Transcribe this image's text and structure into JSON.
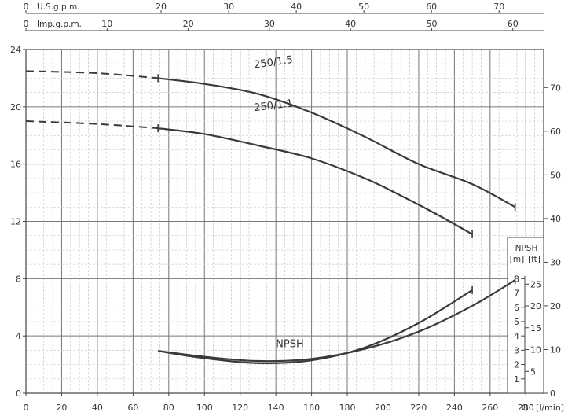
{
  "chart_data": {
    "type": "line",
    "title": "",
    "x_axis": {
      "label": "Q [l/min]",
      "q_label": "Q",
      "unit_label": "[l/min]",
      "range": [
        0,
        290
      ],
      "ticks": [
        0,
        20,
        40,
        60,
        80,
        100,
        120,
        140,
        160,
        180,
        200,
        220,
        240,
        260,
        280
      ]
    },
    "top_axes": [
      {
        "label": "U.S.g.p.m.",
        "range": [
          0,
          76.6
        ],
        "ticks": [
          0,
          20,
          30,
          40,
          50,
          60,
          70
        ]
      },
      {
        "label": "Imp.g.p.m.",
        "range": [
          0,
          63.8
        ],
        "ticks": [
          0,
          10,
          20,
          30,
          40,
          50,
          60
        ]
      }
    ],
    "left_axis": {
      "label": "",
      "range": [
        0,
        24
      ],
      "ticks": [
        0,
        4,
        8,
        12,
        16,
        20,
        24
      ]
    },
    "right_axis": {
      "label": "",
      "range": [
        0,
        78.7
      ],
      "ticks": [
        0,
        10,
        20,
        30,
        40,
        50,
        60,
        70
      ]
    },
    "npsh_axis": {
      "title": "NPSH",
      "m_label": "[m]",
      "ft_label": "[ft]",
      "m_range": [
        0,
        8.9
      ],
      "m_ticks": [
        1,
        2,
        3,
        4,
        5,
        6,
        7,
        8
      ],
      "ft_ticks": [
        5,
        10,
        15,
        20,
        25
      ]
    },
    "series": [
      {
        "name": "250/1.5",
        "dashed_part": {
          "x": [
            0,
            40,
            74
          ],
          "y": [
            22.5,
            22.35,
            22.0
          ]
        },
        "x": [
          74,
          100,
          130,
          160,
          190,
          220,
          250,
          274
        ],
        "y": [
          22.0,
          21.6,
          20.9,
          19.6,
          17.9,
          16.0,
          14.6,
          13.0
        ]
      },
      {
        "name": "250/1.1",
        "dashed_part": {
          "x": [
            0,
            40,
            74
          ],
          "y": [
            19.0,
            18.8,
            18.5
          ]
        },
        "x": [
          74,
          100,
          130,
          160,
          190,
          210,
          230,
          250
        ],
        "y": [
          18.5,
          18.1,
          17.3,
          16.4,
          15.0,
          13.8,
          12.5,
          11.1
        ]
      },
      {
        "name": "NPSH",
        "x": [
          74,
          100,
          130,
          160,
          190,
          220,
          250
        ],
        "y": [
          2.95,
          2.45,
          2.1,
          2.3,
          3.2,
          4.9,
          7.2
        ]
      },
      {
        "name": "",
        "x": [
          74,
          100,
          130,
          160,
          190,
          220,
          250,
          274
        ],
        "y": [
          2.95,
          2.55,
          2.25,
          2.4,
          3.1,
          4.3,
          6.1,
          7.9
        ]
      }
    ],
    "grid": true
  }
}
